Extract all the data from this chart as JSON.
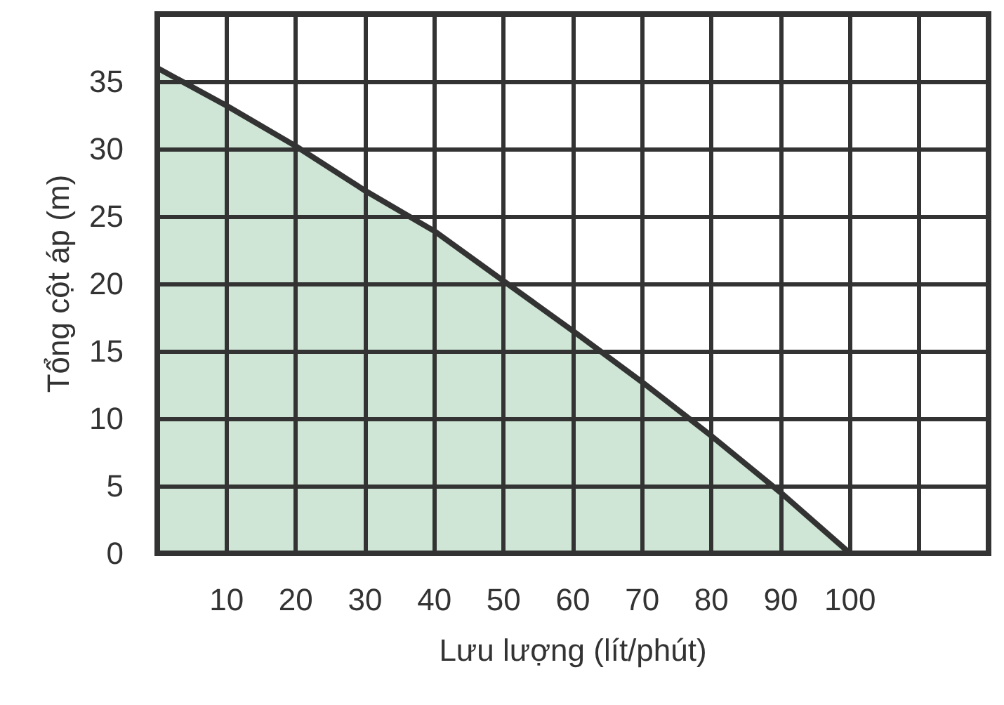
{
  "chart_data": {
    "type": "area",
    "xlabel": "Lưu lượng (lít/phút)",
    "ylabel": "Tổng cột áp (m)",
    "x": [
      0,
      10,
      20,
      30,
      40,
      50,
      60,
      70,
      80,
      90,
      100
    ],
    "series": [
      {
        "color": "#cfe6d6",
        "values": [
          36,
          33.2,
          30.2,
          26.9,
          23.9,
          20.2,
          16.5,
          12.7,
          8.7,
          4.5,
          0
        ]
      }
    ],
    "xlim": [
      0,
      120
    ],
    "xticks": [
      {
        "value": 0,
        "label": null
      },
      10,
      20,
      30,
      40,
      50,
      60,
      70,
      80,
      90,
      100,
      {
        "value": 110,
        "label": null
      },
      {
        "value": 120,
        "label": null
      }
    ],
    "ylim": [
      0,
      40
    ],
    "yticks": [
      0,
      5,
      10,
      15,
      20,
      25,
      30,
      35,
      {
        "value": 40,
        "label": null
      }
    ],
    "grid": true,
    "marker": "none",
    "line_style": "solid"
  }
}
